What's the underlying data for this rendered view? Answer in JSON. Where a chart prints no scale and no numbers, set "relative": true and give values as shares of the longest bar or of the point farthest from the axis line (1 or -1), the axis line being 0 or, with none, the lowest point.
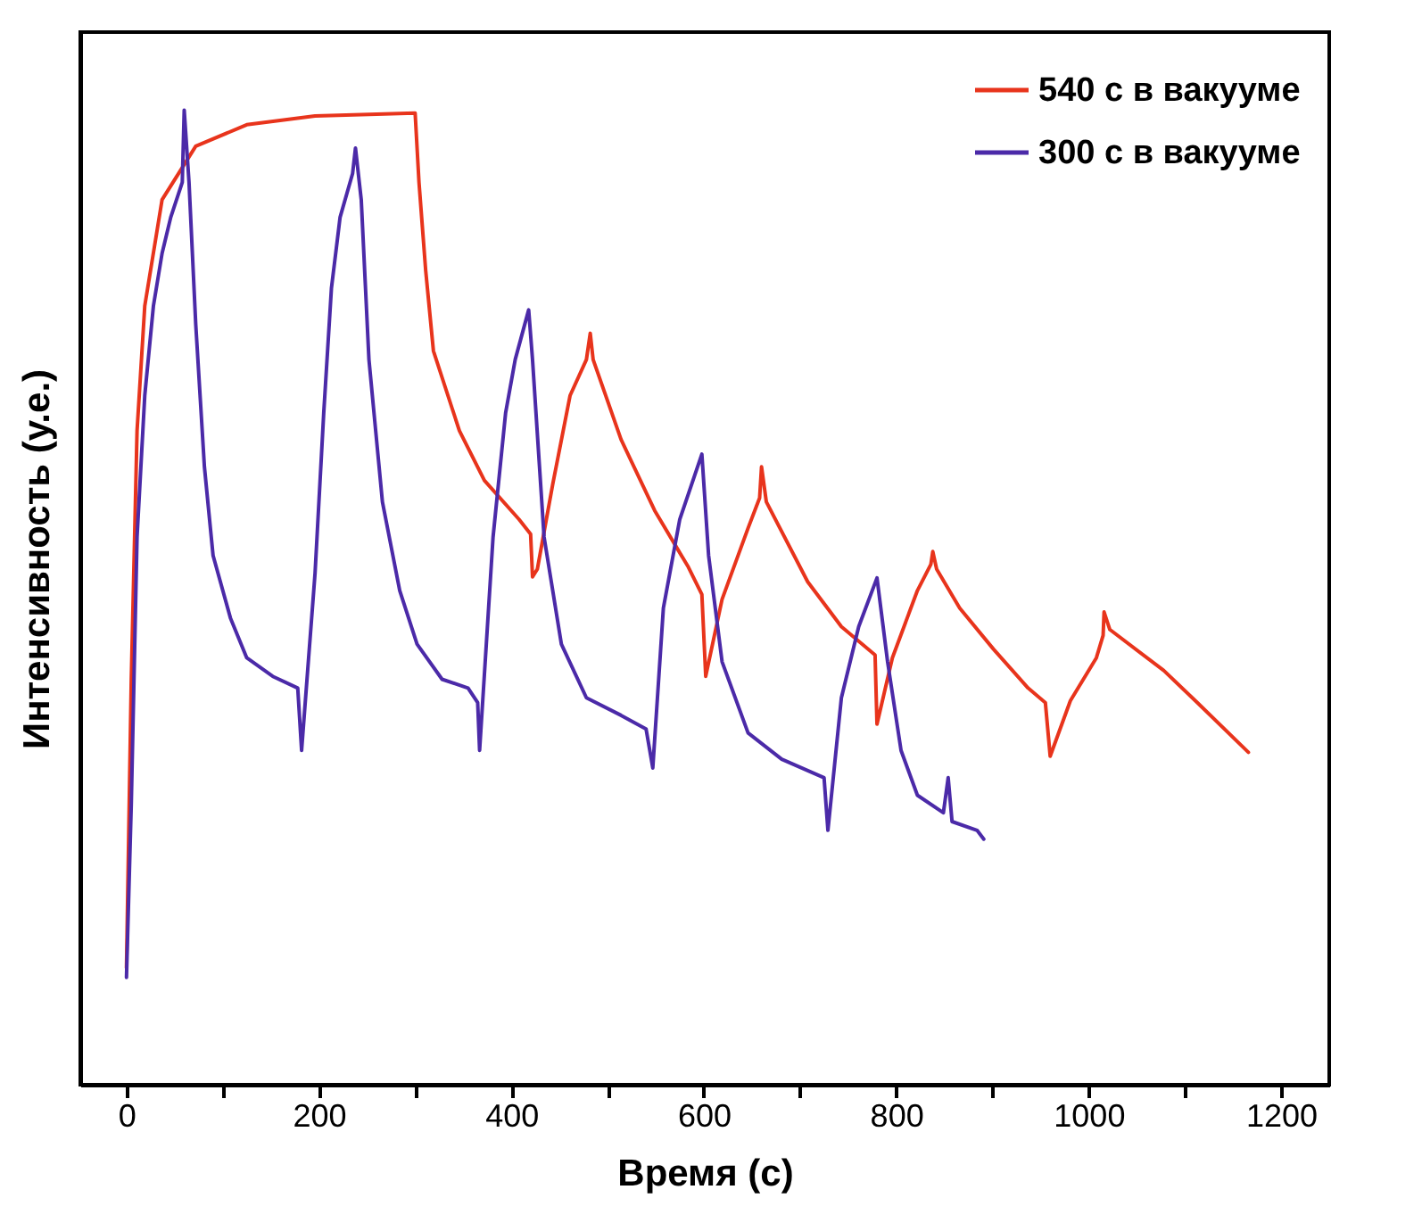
{
  "chart_data": {
    "type": "line",
    "xlabel": "Время (с)",
    "ylabel": "Интенсивность (у.е.)",
    "relative": true,
    "xlim": [
      -48,
      1250
    ],
    "xticks": [
      0,
      {
        "value": 100,
        "label": null
      },
      200,
      {
        "value": 300,
        "label": null
      },
      400,
      {
        "value": 500,
        "label": null
      },
      600,
      {
        "value": 700,
        "label": null
      },
      800,
      {
        "value": 900,
        "label": null
      },
      1000,
      {
        "value": 1100,
        "label": null
      },
      1200
    ],
    "legend": "top right",
    "line_style": "solid",
    "marker": "none",
    "grid": false,
    "series": [
      {
        "name": "540 с в вакууме",
        "color": "#e8341c",
        "x": [
          0,
          5,
          11,
          19,
          37,
          72,
          125,
          196,
          300,
          304,
          311,
          319,
          346,
          372,
          408,
          420,
          422,
          427,
          443,
          461,
          478,
          482,
          485,
          514,
          549,
          584,
          598,
          602,
          619,
          646,
          658,
          660,
          665,
          708,
          743,
          778,
          780,
          796,
          822,
          836,
          838,
          842,
          866,
          901,
          937,
          955,
          960,
          981,
          1008,
          1015,
          1016,
          1022,
          1078,
          1113,
          1166
        ],
        "values": [
          0.12,
          0.416,
          0.671,
          0.799,
          0.908,
          0.963,
          0.985,
          0.994,
          0.997,
          0.926,
          0.835,
          0.753,
          0.671,
          0.62,
          0.58,
          0.565,
          0.521,
          0.529,
          0.616,
          0.707,
          0.744,
          0.771,
          0.744,
          0.662,
          0.589,
          0.531,
          0.503,
          0.419,
          0.498,
          0.571,
          0.602,
          0.634,
          0.598,
          0.516,
          0.47,
          0.441,
          0.37,
          0.438,
          0.507,
          0.534,
          0.547,
          0.529,
          0.489,
          0.447,
          0.407,
          0.392,
          0.337,
          0.394,
          0.438,
          0.461,
          0.485,
          0.467,
          0.425,
          0.392,
          0.341
        ]
      },
      {
        "name": "300 с в вакууме",
        "color": "#4b2aa8",
        "x": [
          0,
          5,
          11,
          19,
          28,
          37,
          46,
          58,
          60,
          65,
          72,
          81,
          90,
          108,
          125,
          152,
          178,
          182,
          196,
          205,
          213,
          222,
          235,
          238,
          244,
          252,
          266,
          284,
          302,
          328,
          355,
          365,
          367,
          381,
          394,
          404,
          418,
          422,
          434,
          452,
          478,
          514,
          540,
          547,
          558,
          575,
          598,
          605,
          619,
          646,
          681,
          725,
          729,
          743,
          761,
          780,
          791,
          805,
          822,
          849,
          854,
          858,
          884,
          891
        ],
        "values": [
          0.11,
          0.288,
          0.562,
          0.707,
          0.799,
          0.853,
          0.89,
          0.926,
          1.0,
          0.926,
          0.78,
          0.634,
          0.543,
          0.479,
          0.438,
          0.419,
          0.407,
          0.343,
          0.525,
          0.689,
          0.817,
          0.89,
          0.935,
          0.961,
          0.908,
          0.744,
          0.598,
          0.507,
          0.452,
          0.416,
          0.407,
          0.392,
          0.343,
          0.562,
          0.689,
          0.744,
          0.795,
          0.744,
          0.562,
          0.452,
          0.397,
          0.379,
          0.365,
          0.325,
          0.489,
          0.58,
          0.647,
          0.543,
          0.434,
          0.361,
          0.334,
          0.315,
          0.261,
          0.397,
          0.47,
          0.52,
          0.434,
          0.343,
          0.297,
          0.279,
          0.315,
          0.27,
          0.261,
          0.252
        ]
      }
    ]
  }
}
